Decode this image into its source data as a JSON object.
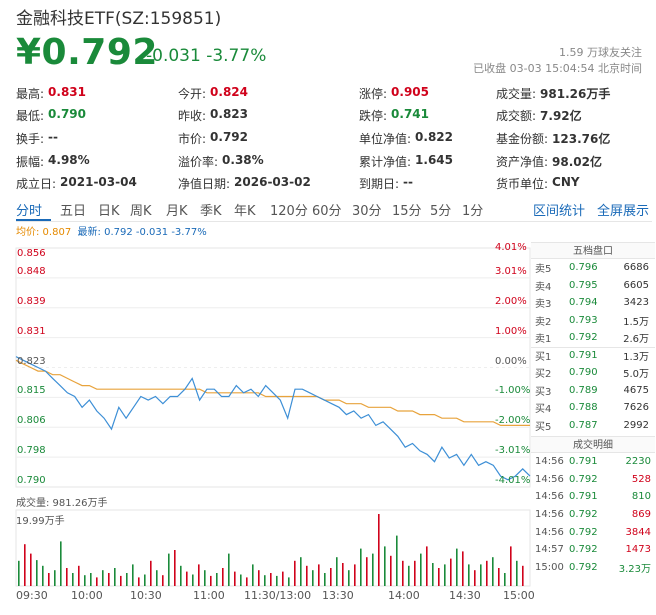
{
  "header": {
    "title": "金融科技ETF(SZ:159851)",
    "price": "¥0.792",
    "change": "-0.031 -3.77%",
    "follow": "1.59 万球友关注",
    "status": "已收盘 03-03 15:04:54 北京时间"
  },
  "quote_rows": [
    [
      {
        "label": "最高:",
        "value": "0.831",
        "tone": "red"
      },
      {
        "label": "今开:",
        "value": "0.824",
        "tone": "red"
      },
      {
        "label": "涨停:",
        "value": "0.905",
        "tone": "red"
      },
      {
        "label": "成交量:",
        "value": "981.26万手",
        "tone": "none"
      }
    ],
    [
      {
        "label": "最低:",
        "value": "0.790",
        "tone": "green"
      },
      {
        "label": "昨收:",
        "value": "0.823",
        "tone": "none"
      },
      {
        "label": "跌停:",
        "value": "0.741",
        "tone": "green"
      },
      {
        "label": "成交额:",
        "value": "7.92亿",
        "tone": "none"
      }
    ],
    [
      {
        "label": "换手:",
        "value": "--",
        "tone": "none"
      },
      {
        "label": "市价:",
        "value": "0.792",
        "tone": "none"
      },
      {
        "label": "单位净值:",
        "value": "0.822",
        "tone": "none"
      },
      {
        "label": "基金份额:",
        "value": "123.76亿",
        "tone": "none"
      }
    ],
    [
      {
        "label": "振幅:",
        "value": "4.98%",
        "tone": "none"
      },
      {
        "label": "溢价率:",
        "value": "0.38%",
        "tone": "none"
      },
      {
        "label": "累计净值:",
        "value": "1.645",
        "tone": "none"
      },
      {
        "label": "资产净值:",
        "value": "98.02亿",
        "tone": "none"
      }
    ],
    [
      {
        "label": "成立日:",
        "value": "2021-03-04",
        "tone": "none"
      },
      {
        "label": "净值日期:",
        "value": "2026-03-02",
        "tone": "none"
      },
      {
        "label": "到期日:",
        "value": "--",
        "tone": "none"
      },
      {
        "label": "货币单位:",
        "value": "CNY",
        "tone": "none"
      }
    ]
  ],
  "tabs": [
    "分时",
    "五日",
    "日K",
    "周K",
    "月K",
    "季K",
    "年K",
    "120分",
    "60分",
    "30分",
    "15分",
    "5分",
    "1分"
  ],
  "tab_links": [
    "区间统计",
    "全屏展示"
  ],
  "chart_legend": {
    "avg": "均价: 0.807",
    "latest": "最新: 0.792 -0.031 -3.77%"
  },
  "volume_label": "成交量: 981.26万手",
  "volume_max": "19.99万手",
  "colors": {
    "up": "#d0021b",
    "down": "#1a8a3a",
    "price_line": "#3d8fd6",
    "avg_line": "#e8a33c",
    "accent": "#1a6ab8"
  },
  "order_book_title": "五档盘口",
  "order_book": [
    {
      "label": "卖5",
      "price": "0.796",
      "vol": "6686"
    },
    {
      "label": "卖4",
      "price": "0.795",
      "vol": "6605"
    },
    {
      "label": "卖3",
      "price": "0.794",
      "vol": "3423"
    },
    {
      "label": "卖2",
      "price": "0.793",
      "vol": "1.5万"
    },
    {
      "label": "卖1",
      "price": "0.792",
      "vol": "2.6万"
    },
    {
      "label": "买1",
      "price": "0.791",
      "vol": "1.3万"
    },
    {
      "label": "买2",
      "price": "0.790",
      "vol": "5.0万"
    },
    {
      "label": "买3",
      "price": "0.789",
      "vol": "4675"
    },
    {
      "label": "买4",
      "price": "0.788",
      "vol": "7626"
    },
    {
      "label": "买5",
      "price": "0.787",
      "vol": "2992"
    }
  ],
  "trades_title": "成交明细",
  "trades": [
    {
      "time": "14:56",
      "price": "0.791",
      "vol": "2230",
      "side": "down"
    },
    {
      "time": "14:56",
      "price": "0.792",
      "vol": "528",
      "side": "up"
    },
    {
      "time": "14:56",
      "price": "0.791",
      "vol": "810",
      "side": "down"
    },
    {
      "time": "14:56",
      "price": "0.792",
      "vol": "869",
      "side": "up"
    },
    {
      "time": "14:56",
      "price": "0.792",
      "vol": "3844",
      "side": "up"
    },
    {
      "time": "14:57",
      "price": "0.792",
      "vol": "1473",
      "side": "up"
    },
    {
      "time": "15:00",
      "price": "0.792",
      "vol": "3.23万",
      "side": "down"
    }
  ],
  "chart_data": {
    "type": "line",
    "y_left_ticks": [
      "0.856",
      "0.848",
      "0.839",
      "0.831",
      "0.823",
      "0.815",
      "0.806",
      "0.798",
      "0.790"
    ],
    "y_right_ticks": [
      "4.01%",
      "3.01%",
      "2.00%",
      "1.00%",
      "0.00%",
      "-1.00%",
      "-2.00%",
      "-3.01%",
      "-4.01%"
    ],
    "x_ticks": [
      "09:30",
      "10:00",
      "10:30",
      "11:00",
      "11:30/13:00",
      "13:30",
      "14:00",
      "14:30",
      "15:00"
    ],
    "ylim": [
      0.79,
      0.856
    ],
    "prev_close": 0.823,
    "series": [
      {
        "values": [
          0.826,
          0.825,
          0.824,
          0.823,
          0.822,
          0.82,
          0.818,
          0.816,
          0.815,
          0.812,
          0.814,
          0.811,
          0.809,
          0.806,
          0.812,
          0.809,
          0.812,
          0.815,
          0.814,
          0.815,
          0.813,
          0.815,
          0.815,
          0.817,
          0.82,
          0.814,
          0.817,
          0.817,
          0.815,
          0.815,
          0.818,
          0.816,
          0.817,
          0.815,
          0.818,
          0.816,
          0.814,
          0.809,
          0.817,
          0.817,
          0.816,
          0.815,
          0.814,
          0.813,
          0.812,
          0.81,
          0.811,
          0.809,
          0.81,
          0.807,
          0.808,
          0.806,
          0.804,
          0.801,
          0.802,
          0.8,
          0.799,
          0.797,
          0.801,
          0.798,
          0.799,
          0.796,
          0.799,
          0.796,
          0.797,
          0.796,
          0.793,
          0.792,
          0.793,
          0.795,
          0.793
        ]
      },
      {
        "values": [
          0.825,
          0.824,
          0.823,
          0.822,
          0.822,
          0.821,
          0.821,
          0.82,
          0.819,
          0.818,
          0.818,
          0.817,
          0.817,
          0.817,
          0.817,
          0.817,
          0.817,
          0.817,
          0.817,
          0.817,
          0.817,
          0.817,
          0.817,
          0.817,
          0.817,
          0.817,
          0.816,
          0.816,
          0.816,
          0.816,
          0.816,
          0.816,
          0.816,
          0.816,
          0.815,
          0.815,
          0.815,
          0.815,
          0.815,
          0.815,
          0.815,
          0.815,
          0.814,
          0.814,
          0.814,
          0.813,
          0.813,
          0.813,
          0.812,
          0.812,
          0.812,
          0.812,
          0.811,
          0.811,
          0.811,
          0.81,
          0.81,
          0.81,
          0.809,
          0.809,
          0.809,
          0.808,
          0.808,
          0.808,
          0.808,
          0.808,
          0.807,
          0.807,
          0.807,
          0.807,
          0.807
        ]
      }
    ],
    "volume": [
      0.35,
      0.58,
      0.45,
      0.36,
      0.28,
      0.18,
      0.22,
      0.62,
      0.25,
      0.18,
      0.28,
      0.15,
      0.18,
      0.12,
      0.22,
      0.18,
      0.25,
      0.14,
      0.18,
      0.3,
      0.12,
      0.16,
      0.35,
      0.22,
      0.15,
      0.45,
      0.5,
      0.28,
      0.2,
      0.16,
      0.3,
      0.22,
      0.14,
      0.18,
      0.25,
      0.45,
      0.2,
      0.16,
      0.12,
      0.3,
      0.22,
      0.15,
      0.18,
      0.14,
      0.2,
      0.12,
      0.35,
      0.4,
      0.28,
      0.22,
      0.3,
      0.18,
      0.25,
      0.4,
      0.32,
      0.22,
      0.3,
      0.52,
      0.4,
      0.45,
      1.0,
      0.55,
      0.42,
      0.7,
      0.35,
      0.28,
      0.35,
      0.45,
      0.55,
      0.32,
      0.25,
      0.3,
      0.38,
      0.52,
      0.48,
      0.3,
      0.22,
      0.3,
      0.35,
      0.4,
      0.25,
      0.18,
      0.55,
      0.35,
      0.28
    ],
    "volume_side": [
      "down",
      "up",
      "up",
      "down",
      "down",
      "up",
      "down",
      "down",
      "up",
      "down",
      "up",
      "down",
      "down",
      "up",
      "down",
      "up",
      "down",
      "up",
      "down",
      "down",
      "up",
      "down",
      "up",
      "down",
      "up",
      "down",
      "up",
      "down",
      "up",
      "down",
      "up",
      "down",
      "up",
      "down",
      "up",
      "down",
      "up",
      "down",
      "up",
      "down",
      "up",
      "down",
      "up",
      "down",
      "up",
      "down",
      "up",
      "down",
      "up",
      "down",
      "up",
      "down",
      "up",
      "down",
      "up",
      "down",
      "up",
      "down",
      "up",
      "down",
      "up",
      "down",
      "up",
      "down",
      "up",
      "down",
      "up",
      "down",
      "up",
      "down",
      "up",
      "down",
      "up",
      "down",
      "up",
      "down",
      "up",
      "down",
      "up",
      "down",
      "up",
      "down",
      "up",
      "down",
      "up"
    ]
  }
}
